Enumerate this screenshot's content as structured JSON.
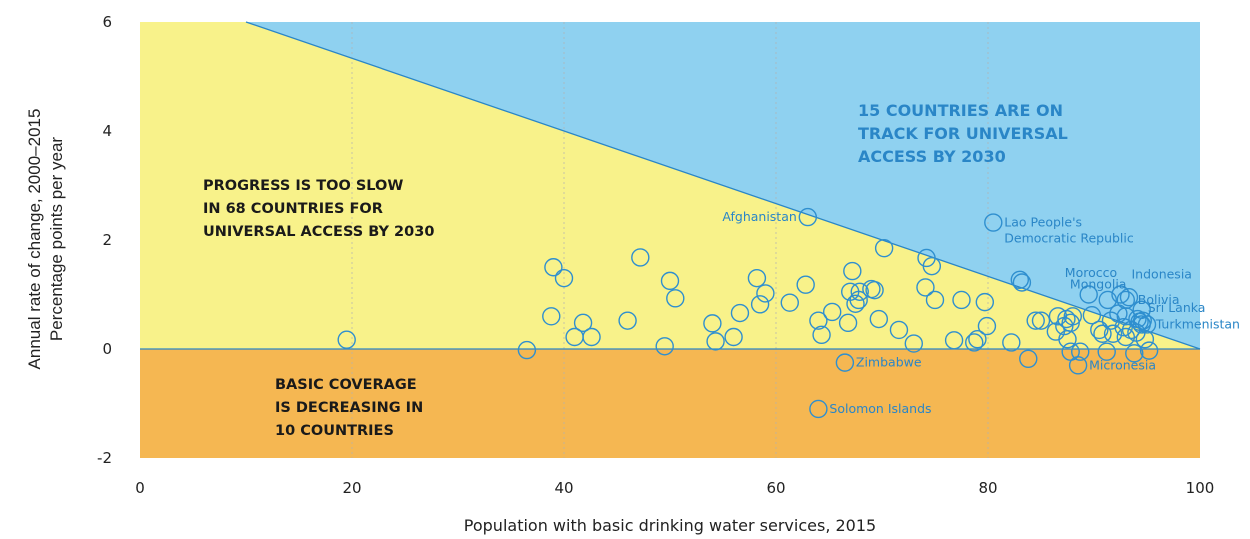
{
  "chart_data": {
    "type": "scatter",
    "xlabel": "Population with basic drinking water services, 2015",
    "ylabel_line1": "Annual rate of change, 2000–2015",
    "ylabel_line2": "Percentage points per year",
    "xlim": [
      0,
      100
    ],
    "ylim": [
      -2,
      6
    ],
    "x_ticks": [
      "0",
      "20",
      "40",
      "60",
      "80",
      "100"
    ],
    "y_ticks": [
      "6",
      "4",
      "2",
      "0",
      "-2"
    ],
    "grid": "vertical-dashed",
    "colors": {
      "on_track": "#8fd1f0",
      "too_slow": "#f8f28a",
      "decreasing": "#f5b752",
      "points": "#2f8fcf",
      "track_text": "#2a86c7"
    },
    "region_labels": {
      "on_track": [
        "15 COUNTRIES ARE ON",
        "TRACK FOR UNIVERSAL",
        "ACCESS BY 2030"
      ],
      "too_slow": [
        "PROGRESS IS TOO SLOW",
        "IN 68 COUNTRIES FOR",
        "UNIVERSAL ACCESS BY 2030"
      ],
      "decreasing": [
        "BASIC COVERAGE",
        "IS DECREASING IN",
        "10 COUNTRIES"
      ]
    },
    "labeled_points": [
      {
        "name": "Afghanistan",
        "x": 63,
        "y": 2.42
      },
      {
        "name": "Lao People's Democratic Republic",
        "x": 80.5,
        "y": 2.32
      },
      {
        "name": "Morocco",
        "x": 83,
        "y": 1.27
      },
      {
        "name": "Mongolia",
        "x": 83.2,
        "y": 1.22
      },
      {
        "name": "Indonesia",
        "x": 92.5,
        "y": 1.0
      },
      {
        "name": "Sri Lanka",
        "x": 94.5,
        "y": 0.72
      },
      {
        "name": "Bolivia",
        "x": 93,
        "y": 0.9
      },
      {
        "name": "Turkmenistan",
        "x": 94.5,
        "y": 0.45
      },
      {
        "name": "Zimbabwe",
        "x": 66.5,
        "y": -0.25
      },
      {
        "name": "Micronesia",
        "x": 88.5,
        "y": -0.3
      },
      {
        "name": "Solomon Islands",
        "x": 64,
        "y": -1.1
      }
    ],
    "points": [
      [
        19.5,
        0.17
      ],
      [
        36.5,
        -0.02
      ],
      [
        39,
        1.5
      ],
      [
        40,
        1.3
      ],
      [
        38.8,
        0.6
      ],
      [
        41,
        0.22
      ],
      [
        41.8,
        0.48
      ],
      [
        42.6,
        0.22
      ],
      [
        46,
        0.52
      ],
      [
        47.2,
        1.68
      ],
      [
        49.5,
        0.05
      ],
      [
        50,
        1.25
      ],
      [
        50.5,
        0.93
      ],
      [
        54,
        0.47
      ],
      [
        54.3,
        0.14
      ],
      [
        56,
        0.22
      ],
      [
        56.6,
        0.66
      ],
      [
        58.2,
        1.3
      ],
      [
        58.5,
        0.82
      ],
      [
        59,
        1.02
      ],
      [
        61.3,
        0.85
      ],
      [
        62.8,
        1.18
      ],
      [
        64,
        0.52
      ],
      [
        64.3,
        0.26
      ],
      [
        65.3,
        0.68
      ],
      [
        66.8,
        0.48
      ],
      [
        67,
        1.05
      ],
      [
        67.2,
        1.43
      ],
      [
        67.5,
        0.83
      ],
      [
        67.8,
        0.9
      ],
      [
        67.9,
        1.05
      ],
      [
        69,
        1.1
      ],
      [
        69.3,
        1.08
      ],
      [
        69.7,
        0.55
      ],
      [
        70.2,
        1.85
      ],
      [
        71.6,
        0.35
      ],
      [
        73,
        0.1
      ],
      [
        74.1,
        1.13
      ],
      [
        74.2,
        1.67
      ],
      [
        74.7,
        1.52
      ],
      [
        75,
        0.9
      ],
      [
        76.8,
        0.16
      ],
      [
        77.5,
        0.9
      ],
      [
        78.7,
        0.12
      ],
      [
        79,
        0.18
      ],
      [
        79.7,
        0.86
      ],
      [
        79.9,
        0.42
      ],
      [
        82.2,
        0.12
      ],
      [
        83.8,
        -0.18
      ],
      [
        84.5,
        0.52
      ],
      [
        85,
        0.52
      ],
      [
        86.4,
        0.32
      ],
      [
        86.6,
        0.6
      ],
      [
        87.2,
        0.42
      ],
      [
        87.4,
        0.55
      ],
      [
        87.8,
        0.48
      ],
      [
        88,
        0.6
      ],
      [
        87.5,
        0.18
      ],
      [
        87.8,
        -0.05
      ],
      [
        88.7,
        -0.05
      ],
      [
        89.5,
        1.0
      ],
      [
        89.8,
        0.62
      ],
      [
        90.5,
        0.35
      ],
      [
        90.8,
        0.28
      ],
      [
        91.3,
        0.9
      ],
      [
        91.2,
        -0.05
      ],
      [
        91.6,
        0.52
      ],
      [
        91.8,
        0.28
      ],
      [
        92.3,
        0.65
      ],
      [
        92.8,
        0.4
      ],
      [
        93,
        0.6
      ],
      [
        93,
        0.22
      ],
      [
        93.3,
        0.95
      ],
      [
        93.5,
        0.35
      ],
      [
        93.8,
        -0.08
      ],
      [
        94,
        0.3
      ],
      [
        94.1,
        0.55
      ],
      [
        94.3,
        0.5
      ],
      [
        94.6,
        0.52
      ],
      [
        94.8,
        0.18
      ],
      [
        95,
        0.45
      ],
      [
        95.2,
        -0.03
      ]
    ]
  }
}
